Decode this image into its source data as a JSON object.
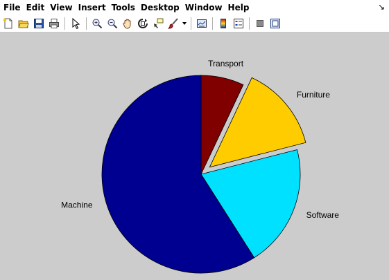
{
  "menu": [
    "File",
    "Edit",
    "View",
    "Insert",
    "Tools",
    "Desktop",
    "Window",
    "Help"
  ],
  "dock_glyph": "↘",
  "toolbar": {
    "buttons": [
      "new-figure",
      "open-file",
      "save",
      "print",
      "select-pointer",
      "zoom-in",
      "zoom-out",
      "pan",
      "rotate-3d",
      "data-cursor",
      "brush",
      "link-plot",
      "colorbar",
      "legend",
      "hide-plot-tools",
      "show-plot-tools"
    ]
  },
  "chart_data": {
    "type": "pie",
    "categories": [
      "Transport",
      "Furniture",
      "Software",
      "Machine"
    ],
    "values": [
      7,
      14,
      20,
      59
    ],
    "exploded": [
      false,
      true,
      false,
      false
    ],
    "colors": [
      "#800000",
      "#ffcc00",
      "#00e0ff",
      "#000090"
    ],
    "start": "12 o'clock",
    "direction": "clockwise"
  }
}
